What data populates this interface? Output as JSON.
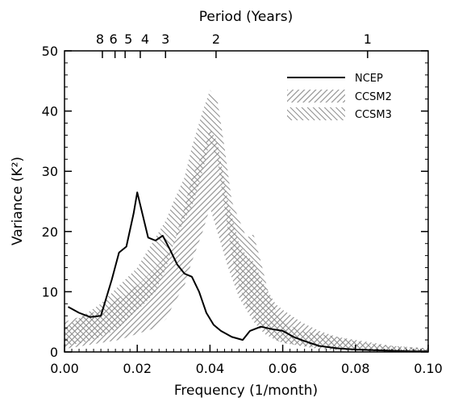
{
  "chart_data": {
    "type": "area",
    "title": "",
    "xlabel": "Frequency (1/month)",
    "ylabel": "Variance (K²)",
    "top_axis_label": "Period (Years)",
    "xlim": [
      0.0,
      0.1
    ],
    "ylim": [
      0,
      50
    ],
    "grid": false,
    "legend_position": "top-right",
    "x_ticks": [
      "0.00",
      "0.02",
      "0.04",
      "0.06",
      "0.08",
      "0.10"
    ],
    "y_ticks": [
      "0",
      "10",
      "20",
      "30",
      "40",
      "50"
    ],
    "top_ticks": [
      {
        "period": 8,
        "label": "8"
      },
      {
        "period": 6,
        "label": "6"
      },
      {
        "period": 5,
        "label": "5"
      },
      {
        "period": 4,
        "label": "4"
      },
      {
        "period": 3,
        "label": "3"
      },
      {
        "period": 2,
        "label": "2"
      },
      {
        "period": 1,
        "label": "1"
      }
    ],
    "top_label_text": "8654  3  2  1",
    "series": [
      {
        "name": "NCEP",
        "kind": "line",
        "x": [
          0.001,
          0.004,
          0.007,
          0.01,
          0.013,
          0.015,
          0.017,
          0.019,
          0.02,
          0.021,
          0.023,
          0.025,
          0.027,
          0.029,
          0.031,
          0.033,
          0.035,
          0.037,
          0.039,
          0.041,
          0.043,
          0.046,
          0.049,
          0.051,
          0.054,
          0.057,
          0.06,
          0.063,
          0.066,
          0.07,
          0.075,
          0.08,
          0.085,
          0.09,
          0.095,
          0.1
        ],
        "y": [
          7.5,
          6.5,
          5.8,
          6.0,
          12.0,
          16.5,
          17.5,
          23.0,
          26.5,
          24.0,
          19.0,
          18.5,
          19.3,
          17.0,
          14.5,
          13.0,
          12.5,
          10.0,
          6.5,
          4.5,
          3.5,
          2.5,
          2.0,
          3.5,
          4.2,
          3.8,
          3.5,
          2.5,
          1.8,
          1.0,
          0.6,
          0.4,
          0.3,
          0.2,
          0.1,
          0.1
        ]
      },
      {
        "name": "CCSM2",
        "kind": "band",
        "x": [
          0.0,
          0.005,
          0.01,
          0.015,
          0.02,
          0.025,
          0.028,
          0.03,
          0.033,
          0.035,
          0.038,
          0.04,
          0.042,
          0.045,
          0.048,
          0.05,
          0.052,
          0.055,
          0.058,
          0.06,
          0.065,
          0.07,
          0.075,
          0.08,
          0.085,
          0.09,
          0.095,
          0.1
        ],
        "lower": [
          0.5,
          1.0,
          1.5,
          2.0,
          3.0,
          4.0,
          5.5,
          8.0,
          11.0,
          15.0,
          20.0,
          24.0,
          20.0,
          14.0,
          9.0,
          7.0,
          5.0,
          3.0,
          2.0,
          1.5,
          1.0,
          0.5,
          0.3,
          0.2,
          0.1,
          0.1,
          0.1,
          0.0
        ],
        "upper": [
          5.0,
          6.0,
          7.0,
          9.0,
          11.0,
          14.0,
          16.0,
          18.0,
          24.0,
          29.0,
          33.0,
          37.0,
          35.0,
          25.0,
          18.0,
          16.0,
          15.0,
          11.0,
          8.0,
          7.0,
          5.0,
          3.5,
          2.5,
          2.0,
          1.5,
          1.0,
          0.8,
          0.6
        ]
      },
      {
        "name": "CCSM3",
        "kind": "band",
        "x": [
          0.0,
          0.005,
          0.01,
          0.015,
          0.02,
          0.022,
          0.025,
          0.028,
          0.03,
          0.033,
          0.035,
          0.038,
          0.04,
          0.042,
          0.044,
          0.046,
          0.048,
          0.05,
          0.052,
          0.054,
          0.056,
          0.058,
          0.06,
          0.065,
          0.07,
          0.075,
          0.08,
          0.085,
          0.09,
          0.095,
          0.1
        ],
        "lower": [
          1.0,
          1.5,
          2.5,
          4.0,
          7.0,
          8.0,
          10.0,
          14.0,
          18.0,
          22.0,
          24.0,
          30.0,
          35.0,
          32.0,
          24.0,
          16.0,
          11.0,
          8.0,
          6.0,
          4.0,
          3.0,
          2.0,
          1.5,
          1.0,
          0.8,
          0.5,
          0.3,
          0.2,
          0.1,
          0.1,
          0.1
        ],
        "upper": [
          4.0,
          6.0,
          8.0,
          11.0,
          14.0,
          16.0,
          19.0,
          22.0,
          25.0,
          29.0,
          34.0,
          40.0,
          43.5,
          42.0,
          34.0,
          25.0,
          22.0,
          19.0,
          19.5,
          15.0,
          10.0,
          7.0,
          5.0,
          3.5,
          3.0,
          2.5,
          1.8,
          1.3,
          1.0,
          0.8,
          0.6
        ]
      }
    ]
  }
}
